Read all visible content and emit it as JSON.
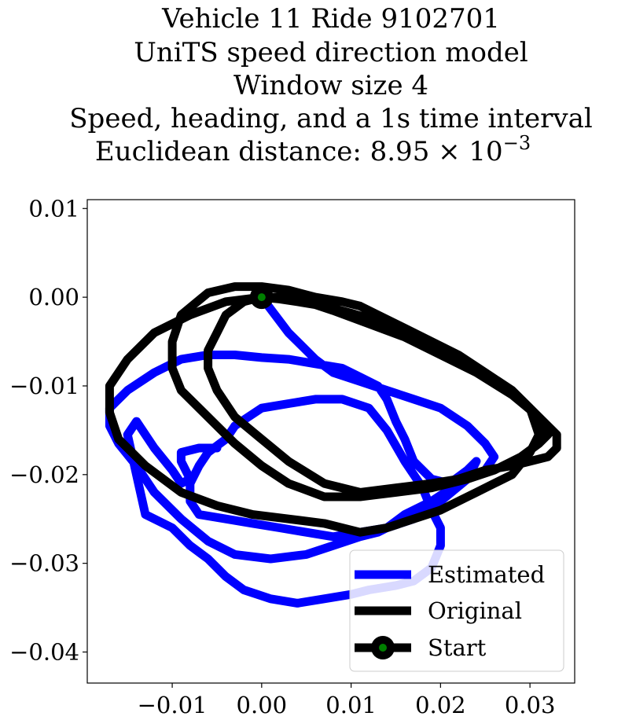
{
  "chart_data": {
    "type": "line",
    "title_lines": [
      "Vehicle 11 Ride 9102701",
      "UniTS speed direction model",
      "Window size 4",
      "Speed, heading, and a 1s time interval",
      "Euclidean distance: 8.95 × 10"
    ],
    "title_exponent": "−3",
    "xlabel": "",
    "ylabel": "",
    "xlim": [
      -0.0195,
      0.035
    ],
    "ylim": [
      -0.0435,
      0.011
    ],
    "xticks": [
      -0.01,
      0.0,
      0.01,
      0.02,
      0.03
    ],
    "xtick_labels": [
      "−0.01",
      "0.00",
      "0.01",
      "0.02",
      "0.03"
    ],
    "yticks": [
      0.01,
      0.0,
      -0.01,
      -0.02,
      -0.03,
      -0.04
    ],
    "ytick_labels": [
      "0.01",
      "0.00",
      "−0.01",
      "−0.02",
      "−0.03",
      "−0.04"
    ],
    "grid": false,
    "legend_position": "lower-right",
    "series": [
      {
        "name": "Estimated",
        "color": "#0000ff",
        "x": [
          0.0,
          0.003,
          0.006,
          0.008,
          0.011,
          0.014,
          0.017,
          0.02,
          0.023,
          0.025,
          0.026,
          0.025,
          0.022,
          0.019,
          0.016,
          0.014,
          0.013,
          0.011,
          0.008,
          0.005,
          0.001,
          -0.003,
          -0.006,
          -0.009,
          -0.012,
          -0.014,
          -0.016,
          -0.017,
          -0.017,
          -0.015,
          -0.012,
          -0.009,
          -0.006,
          -0.003,
          0.0,
          0.003,
          0.006,
          0.009,
          0.011,
          0.013,
          0.014,
          0.015,
          0.016,
          0.017,
          0.019,
          0.021,
          0.023,
          0.024,
          0.023,
          0.02,
          0.017,
          0.014,
          0.011,
          0.008,
          0.005,
          0.002,
          -0.001,
          -0.004,
          -0.007,
          -0.008,
          -0.008,
          -0.007,
          -0.006,
          -0.004,
          -0.003,
          0.0,
          0.003,
          0.006,
          0.009,
          0.012,
          0.014,
          0.016,
          0.018,
          0.019,
          0.02,
          0.02,
          0.019,
          0.017,
          0.015,
          0.012,
          0.01,
          0.007,
          0.004,
          0.001,
          -0.002,
          -0.004,
          -0.006,
          -0.008,
          -0.01,
          -0.013,
          -0.015,
          -0.014,
          -0.012,
          -0.01,
          -0.009,
          -0.008,
          -0.009,
          -0.009,
          -0.007,
          -0.005
        ],
        "y": [
          0.0,
          -0.004,
          -0.007,
          -0.0085,
          -0.0095,
          -0.0105,
          -0.0115,
          -0.0125,
          -0.0145,
          -0.0165,
          -0.018,
          -0.0195,
          -0.021,
          -0.023,
          -0.0245,
          -0.026,
          -0.0265,
          -0.027,
          -0.028,
          -0.029,
          -0.0295,
          -0.029,
          -0.0275,
          -0.025,
          -0.022,
          -0.019,
          -0.0165,
          -0.0145,
          -0.0125,
          -0.0105,
          -0.0085,
          -0.007,
          -0.0065,
          -0.0065,
          -0.0068,
          -0.007,
          -0.0075,
          -0.008,
          -0.009,
          -0.01,
          -0.0115,
          -0.014,
          -0.016,
          -0.0185,
          -0.0205,
          -0.021,
          -0.0195,
          -0.0185,
          -0.0205,
          -0.023,
          -0.025,
          -0.026,
          -0.0265,
          -0.027,
          -0.0265,
          -0.026,
          -0.0255,
          -0.025,
          -0.0245,
          -0.023,
          -0.021,
          -0.019,
          -0.0175,
          -0.016,
          -0.0145,
          -0.0125,
          -0.012,
          -0.0115,
          -0.0115,
          -0.0125,
          -0.015,
          -0.0185,
          -0.0215,
          -0.024,
          -0.026,
          -0.028,
          -0.0305,
          -0.032,
          -0.0325,
          -0.033,
          -0.0335,
          -0.034,
          -0.0345,
          -0.034,
          -0.033,
          -0.0315,
          -0.0295,
          -0.028,
          -0.026,
          -0.0245,
          -0.0155,
          -0.014,
          -0.017,
          -0.0195,
          -0.021,
          -0.0205,
          -0.0185,
          -0.0175,
          -0.017,
          -0.017
        ]
      },
      {
        "name": "Original",
        "color": "#000000",
        "x": [
          0.0,
          -0.004,
          -0.008,
          -0.012,
          -0.015,
          -0.017,
          -0.017,
          -0.016,
          -0.013,
          -0.009,
          -0.005,
          -0.001,
          0.003,
          0.007,
          0.011,
          0.014,
          0.017,
          0.02,
          0.022,
          0.024,
          0.026,
          0.028,
          0.03,
          0.031,
          0.03,
          0.028,
          0.025,
          0.022,
          0.019,
          0.016,
          0.013,
          0.011,
          0.009,
          0.006,
          0.003,
          0.0,
          -0.003,
          -0.006,
          -0.009,
          -0.01,
          -0.01,
          -0.009,
          -0.007,
          -0.005,
          -0.003,
          0.0,
          0.003,
          0.007,
          0.011,
          0.015,
          0.019,
          0.023,
          0.026,
          0.029,
          0.031,
          0.032,
          0.031,
          0.028,
          0.025,
          0.022,
          0.018,
          0.014,
          0.01,
          0.007,
          0.004,
          0.002,
          0.0,
          -0.002,
          -0.004,
          -0.005,
          -0.006,
          -0.006,
          -0.005,
          -0.003,
          0.0,
          0.003,
          0.007,
          0.011,
          0.015,
          0.019,
          0.022,
          0.025,
          0.028,
          0.03,
          0.032,
          0.033,
          0.033,
          0.031,
          0.028,
          0.024,
          0.02,
          0.016,
          0.012,
          0.008,
          0.005,
          0.002,
          0.0
        ],
        "y": [
          0.0,
          -0.0005,
          -0.002,
          -0.004,
          -0.007,
          -0.01,
          -0.013,
          -0.016,
          -0.019,
          -0.022,
          -0.0235,
          -0.0245,
          -0.025,
          -0.0255,
          -0.0265,
          -0.026,
          -0.025,
          -0.024,
          -0.023,
          -0.022,
          -0.021,
          -0.02,
          -0.0175,
          -0.0155,
          -0.0125,
          -0.0105,
          -0.0085,
          -0.0065,
          -0.005,
          -0.0035,
          -0.002,
          -0.001,
          -0.0005,
          0.0,
          0.0008,
          0.0012,
          0.0012,
          0.0005,
          -0.002,
          -0.005,
          -0.008,
          -0.0105,
          -0.0125,
          -0.0145,
          -0.0165,
          -0.019,
          -0.021,
          -0.0225,
          -0.0225,
          -0.022,
          -0.0215,
          -0.0205,
          -0.0195,
          -0.018,
          -0.0165,
          -0.0155,
          -0.0135,
          -0.0105,
          -0.0085,
          -0.0065,
          -0.0045,
          -0.003,
          -0.0018,
          -0.001,
          -0.0005,
          -0.0002,
          0.0,
          -0.0005,
          -0.002,
          -0.004,
          -0.006,
          -0.008,
          -0.0105,
          -0.0135,
          -0.016,
          -0.0185,
          -0.021,
          -0.022,
          -0.0215,
          -0.021,
          -0.0205,
          -0.0195,
          -0.019,
          -0.0185,
          -0.018,
          -0.017,
          -0.0155,
          -0.0135,
          -0.011,
          -0.0085,
          -0.0065,
          -0.0045,
          -0.003,
          -0.0015,
          -0.0005,
          0.0,
          0.0
        ]
      }
    ],
    "start_point": {
      "name": "Start",
      "x": 0.0,
      "y": 0.0,
      "color": "#000000",
      "inner_color": "#008000"
    },
    "legend": [
      "Estimated",
      "Original",
      "Start"
    ]
  }
}
